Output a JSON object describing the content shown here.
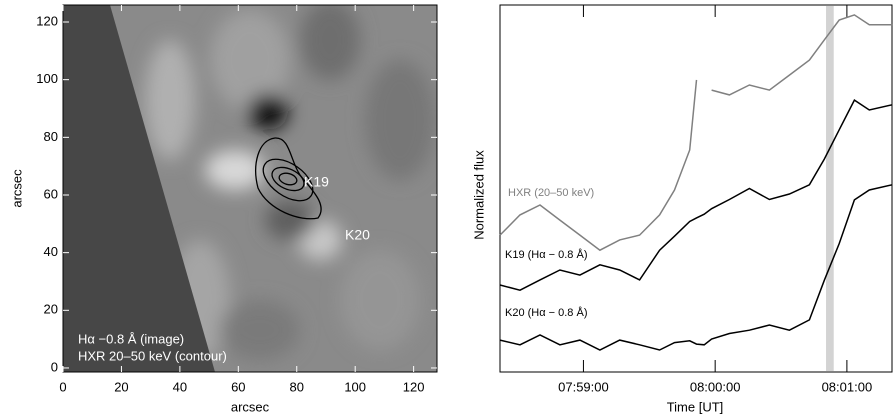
{
  "chart_data": [
    {
      "type": "image",
      "xlabel": "arcsec",
      "ylabel": "arcsec",
      "xlim": [
        0,
        128
      ],
      "ylim": [
        -1.4,
        125.9
      ],
      "xticks": [
        0,
        20,
        40,
        60,
        80,
        100,
        120
      ],
      "yticks": [
        0,
        20,
        40,
        60,
        80,
        100,
        120
      ],
      "annotations": [
        "K19",
        "K20",
        "Hα −0.8 Å (image)",
        "HXR 20–50 keV (contour)"
      ]
    },
    {
      "type": "line",
      "xlabel": "Time [UT]",
      "ylabel": "Normalized flux",
      "xlim": [
        22,
        201
      ],
      "ylim": [
        0,
        100
      ],
      "xticks": [
        {
          "value": 60,
          "label": "07:59:00"
        },
        {
          "value": 120,
          "label": "08:00:00"
        },
        {
          "value": 180,
          "label": "08:01:00"
        }
      ],
      "band": [
        170.5,
        174
      ],
      "x": [
        22,
        31.1,
        40.2,
        49.3,
        58.4,
        67.5,
        76.5,
        85.6,
        94.7,
        101.5,
        108.4,
        111.5,
        115,
        118.4,
        126.5,
        135.6,
        144.7,
        153.8,
        162.9,
        169.7,
        176.5,
        183.4,
        190.2,
        200.6
      ],
      "series": [
        {
          "name": "HXR (20–50 keV)",
          "color": "#808080",
          "values": [
            37.3,
            42.8,
            45.5,
            41.4,
            37.3,
            33.2,
            36.0,
            37.3,
            42.8,
            49.6,
            60.5,
            79.6,
            null,
            76.8,
            75.5,
            78.2,
            76.8,
            80.9,
            85.0,
            90.5,
            95.9,
            97.3,
            94.6,
            94.6
          ]
        },
        {
          "name": "K19 (Hα − 0.8 Å)",
          "color": "#000000",
          "values": [
            23.7,
            22.3,
            25.1,
            27.8,
            26.4,
            29.2,
            27.8,
            25.1,
            33.2,
            37,
            41,
            42,
            43,
            44.5,
            47,
            50,
            47,
            48.5,
            51,
            58,
            66,
            74.1,
            71.4,
            72.8
          ]
        },
        {
          "name": "K20 (Hα − 0.8 Å)",
          "color": "#000000",
          "values": [
            8.7,
            7.4,
            10.1,
            7.4,
            8.7,
            6.0,
            8.7,
            7.4,
            6.0,
            8,
            8.5,
            7.6,
            7.4,
            9,
            10.5,
            11.4,
            12.8,
            11.4,
            14.2,
            25,
            35,
            46.9,
            49.6,
            51.0
          ]
        }
      ]
    }
  ]
}
